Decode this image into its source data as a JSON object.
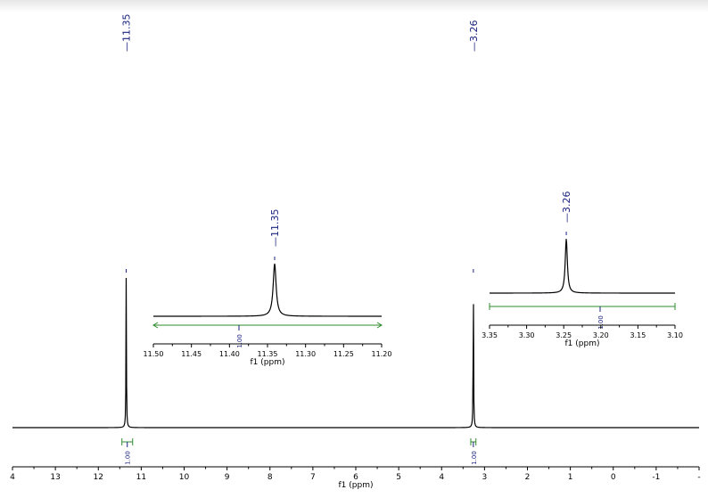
{
  "chart_data": [
    {
      "type": "line",
      "subtype": "nmr-spectrum",
      "xlabel": "f1 (ppm)",
      "xlim": [
        14,
        -2
      ],
      "x_reversed": true,
      "ticks": [
        "4",
        "13",
        "12",
        "11",
        "10",
        "9",
        "8",
        "7",
        "6",
        "5",
        "4",
        "3",
        "2",
        "1",
        "0",
        "-1",
        "-"
      ],
      "peaks": [
        {
          "ppm": 11.35,
          "label": "11.35",
          "height": 1.0
        },
        {
          "ppm": 3.26,
          "label": "3.26",
          "height": 1.0
        }
      ],
      "integrals": [
        {
          "from": 11.45,
          "to": 11.2,
          "value": "1.00"
        },
        {
          "from": 3.32,
          "to": 3.2,
          "value": "1.00"
        }
      ]
    },
    {
      "type": "line",
      "subtype": "nmr-inset",
      "xlabel": "f1 (ppm)",
      "xlim": [
        11.52,
        11.2
      ],
      "x_reversed": true,
      "ticks": [
        "11.50",
        "11.45",
        "11.40",
        "11.35",
        "11.30",
        "11.25",
        "11.20"
      ],
      "peaks": [
        {
          "ppm": 11.35,
          "label": "11.35",
          "height": 1.0
        }
      ],
      "integrals": [
        {
          "from": 11.52,
          "to": 11.2,
          "value": "1.00"
        }
      ]
    },
    {
      "type": "line",
      "subtype": "nmr-inset",
      "xlabel": "f1 (ppm)",
      "xlim": [
        3.38,
        3.09
      ],
      "x_reversed": true,
      "ticks": [
        "3.35",
        "3.30",
        "3.25",
        "3.20",
        "3.15",
        "3.10"
      ],
      "peaks": [
        {
          "ppm": 3.26,
          "label": "3.26",
          "height": 1.0
        }
      ],
      "integrals": [
        {
          "from": 3.38,
          "to": 3.09,
          "value": "1.00"
        }
      ]
    }
  ]
}
